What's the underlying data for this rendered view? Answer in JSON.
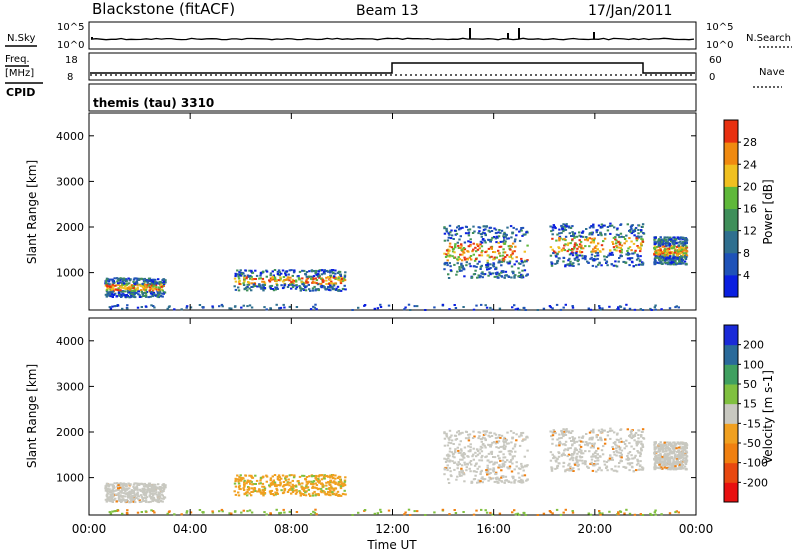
{
  "header": {
    "station": "Blackstone (fitACF)",
    "beam": "Beam 13",
    "date": "17/Jan/2011"
  },
  "top_panels": {
    "noise_left_label": "N.Sky",
    "noise_right_label": "N.Search",
    "noise_ticks": [
      "10^5",
      "10^0"
    ],
    "freq_label_line1": "Freq.",
    "freq_label_line2": "[MHz]",
    "freq_ticks": [
      "18",
      "8"
    ],
    "nave_label": "Nave",
    "nave_ticks": [
      "60",
      "0"
    ],
    "cpid_label": "CPID",
    "cpid_name": "themis (tau) 3310"
  },
  "chart_data": [
    {
      "type": "heatmap",
      "name": "power-panel",
      "ylabel": "Slant Range [km]",
      "ylim": [
        180,
        4500
      ],
      "y_ticks": [
        "4000",
        "3000",
        "2000",
        "1000"
      ],
      "y_tick_values": [
        4000,
        3000,
        2000,
        1000
      ],
      "colorbar": {
        "label": "Power [dB]",
        "ticks": [
          "28",
          "24",
          "20",
          "16",
          "12",
          "8",
          "4"
        ],
        "tick_values": [
          28,
          24,
          20,
          16,
          12,
          8,
          4
        ],
        "range": [
          0,
          32
        ],
        "colors": [
          "#0a1fe0",
          "#1f52b8",
          "#2f6f8f",
          "#3f8f5a",
          "#5fb83a",
          "#f0c020",
          "#f08a10",
          "#e83010"
        ]
      },
      "echo_regions_ut_hours_km": [
        {
          "t": [
            0.6,
            3.0
          ],
          "r": [
            480,
            900
          ],
          "level": "strong"
        },
        {
          "t": [
            5.7,
            10.1
          ],
          "r": [
            620,
            1080
          ],
          "level": "strong"
        },
        {
          "t": [
            14.0,
            17.3
          ],
          "r": [
            900,
            2050
          ],
          "level": "strong"
        },
        {
          "t": [
            18.2,
            21.9
          ],
          "r": [
            1150,
            2100
          ],
          "level": "strong"
        },
        {
          "t": [
            22.3,
            23.6
          ],
          "r": [
            1200,
            1800
          ],
          "level": "medium"
        },
        {
          "t": [
            0.5,
            23.5
          ],
          "r": [
            200,
            320
          ],
          "level": "weak"
        }
      ]
    },
    {
      "type": "heatmap",
      "name": "velocity-panel",
      "xlabel": "Time UT",
      "ylabel": "Slant Range [km]",
      "ylim": [
        180,
        4500
      ],
      "xlim": [
        0,
        24
      ],
      "x_ticks": [
        "00:00",
        "04:00",
        "08:00",
        "12:00",
        "16:00",
        "20:00",
        "00:00"
      ],
      "x_tick_values": [
        0,
        4,
        8,
        12,
        16,
        20,
        24
      ],
      "y_ticks": [
        "4000",
        "3000",
        "2000",
        "1000"
      ],
      "y_tick_values": [
        4000,
        3000,
        2000,
        1000
      ],
      "colorbar": {
        "label": "Velocity [m s-1]",
        "ticks": [
          "200",
          "100",
          "50",
          "15",
          "-15",
          "-50",
          "-100",
          "-200"
        ],
        "tick_values": [
          200,
          100,
          50,
          15,
          -15,
          -50,
          -100,
          -200
        ],
        "colors": [
          "#e81010",
          "#e84810",
          "#f08010",
          "#f0a020",
          "#c8c8c0",
          "#80c040",
          "#40a060",
          "#2a6a9a",
          "#1a2ad8"
        ]
      }
    }
  ]
}
